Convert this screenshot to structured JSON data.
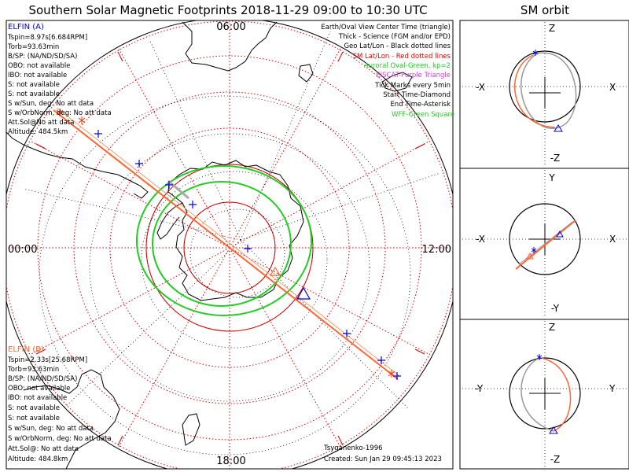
{
  "title": "Southern Solar Magnetic Footprints 2018-11-29 09:00 to 10:30 UTC",
  "orbit_title": "SM orbit",
  "clock_labels": {
    "top": "06:00",
    "left": "00:00",
    "right": "12:00",
    "bottom": "18:00"
  },
  "elfin_a": {
    "name": "ELFIN (A)",
    "lines": [
      "Tspin=8.97s[6.684RPM]",
      "Torb=93.63min",
      "B/SP: (NA/ND/SD/SA)",
      "OBO: not available",
      "IBO: not available",
      "S: not available",
      "S: not available",
      "S w/Sun, deg: No att data",
      "S w/OrbNorm, deg: No att data",
      "Att.Sol@No att data",
      "Altitude: 484.5km"
    ]
  },
  "elfin_b": {
    "name": "ELFIN (B)",
    "lines": [
      "Tspin=2.33s[25.68RPM]",
      "Torb=93.63min",
      "B/SP: (NA/ND/SD/SA)",
      "OBO: not available",
      "IBO: not available",
      "S: not available",
      "S: not available",
      "S w/Sun, deg: No att data",
      "S w/OrbNorm, deg: No att data",
      "Att.Sol@: No att data",
      "Altitude: 484.8km"
    ]
  },
  "legend": [
    {
      "text": "Earth/Oval View Center Time (triangle)",
      "color": "#000000"
    },
    {
      "text": "Thick - Science (FGM and/or EPD)",
      "color": "#000000"
    },
    {
      "text": "Geo Lat/Lon - Black dotted lines",
      "color": "#000000"
    },
    {
      "text": "SM Lat/Lon - Red dotted lines",
      "color": "#e00000"
    },
    {
      "text": "Auroral Oval-Green, kp=2",
      "color": "#22cc22"
    },
    {
      "text": "EISCAT-Purple Triangle",
      "color": "#cc44cc"
    },
    {
      "text": "Tick Marks every 5min",
      "color": "#000000"
    },
    {
      "text": "Start Time-Diamond",
      "color": "#000000"
    },
    {
      "text": "End Time-Asterisk",
      "color": "#000000"
    },
    {
      "text": "WFF-Green Square",
      "color": "#22cc22"
    }
  ],
  "credit": {
    "author": "Tsyganenko-1996",
    "created": "Created: Sun Jan 29 09:45:13 2023"
  },
  "panels": [
    {
      "top": "Z",
      "bottom": "-Z",
      "left": "-X",
      "right": "X"
    },
    {
      "top": "Y",
      "bottom": "-Y",
      "left": "-X",
      "right": "X"
    },
    {
      "top": "Z",
      "bottom": "-Z",
      "left": "-Y",
      "right": "Y"
    }
  ],
  "colors": {
    "elfin_a": "#0000dd",
    "elfin_b": "#ff6633",
    "sm_grid": "#dd0000",
    "geo_grid": "#000000",
    "oval": "#22cc22",
    "eiscat": "#cc44cc",
    "orbit_ref": "#999999"
  }
}
